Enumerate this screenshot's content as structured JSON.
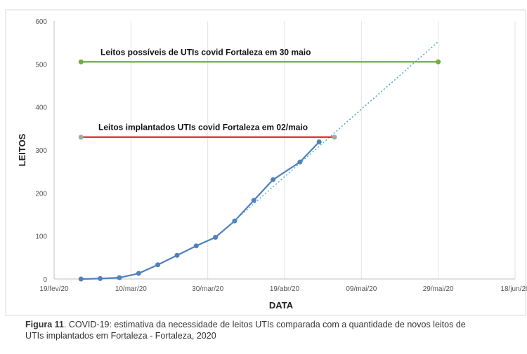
{
  "chart_data": {
    "type": "line",
    "x_label": "DATA",
    "y_label": "LEITOS",
    "xlim": [
      "2020-02-19",
      "2020-06-18"
    ],
    "xticks": [
      {
        "value": "2020-02-19",
        "label": "19/fev/20"
      },
      {
        "value": "2020-03-10",
        "label": "10/mar/20"
      },
      {
        "value": "2020-03-30",
        "label": "30/mar/20"
      },
      {
        "value": "2020-04-19",
        "label": "19/abr/20"
      },
      {
        "value": "2020-05-09",
        "label": "09/mai/20"
      },
      {
        "value": "2020-05-29",
        "label": "29/mai/20"
      },
      {
        "value": "2020-06-18",
        "label": "18/jun/20"
      }
    ],
    "ylim": [
      0,
      600
    ],
    "yticks": [
      0,
      100,
      200,
      300,
      400,
      500,
      600
    ],
    "grid": "x",
    "series": [
      {
        "color": "#4f81bd",
        "style": "solid",
        "markers": true,
        "x": [
          "2020-02-26",
          "2020-03-02",
          "2020-03-07",
          "2020-03-12",
          "2020-03-17",
          "2020-03-22",
          "2020-03-27",
          "2020-04-01",
          "2020-04-06",
          "2020-04-11",
          "2020-04-16",
          "2020-04-23",
          "2020-04-28"
        ],
        "values": [
          0,
          1,
          3,
          13,
          33,
          55,
          77,
          97,
          135,
          183,
          231,
          272,
          319
        ]
      },
      {
        "color": "#4bacc6",
        "style": "dotted",
        "markers": false,
        "x": [
          "2020-04-05",
          "2020-05-29"
        ],
        "values": [
          128,
          552
        ]
      },
      {
        "color": "#70ad47",
        "style": "solid",
        "markers": true,
        "marker_color": "#70ad47",
        "x": [
          "2020-02-26",
          "2020-05-29"
        ],
        "values": [
          505,
          505
        ]
      },
      {
        "color": "#e0201b",
        "style": "solid",
        "markers": true,
        "marker_color": "#a6a6a6",
        "x": [
          "2020-02-26",
          "2020-05-02"
        ],
        "values": [
          330,
          330
        ]
      }
    ],
    "annotations": [
      "Leitos possíveis de UTIs covid Fortaleza em 30 maio",
      "Leitos implantados UTIs covid Fortaleza em 02/maio"
    ]
  },
  "caption": {
    "label": "Figura 11",
    "text": ". COVID-19: estimativa da necessidade de leitos UTIs comparada com a quantidade de novos leitos de",
    "text2": "UTIs implantados em Fortaleza - Fortaleza, 2020"
  }
}
